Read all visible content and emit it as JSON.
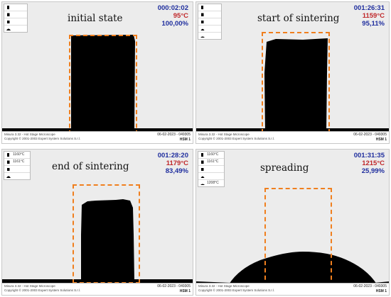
{
  "colors": {
    "box": "#f07f1e",
    "time": "#1f2e9e",
    "temperature": "#c0282a",
    "area": "#1f2e9e"
  },
  "panels": [
    {
      "title": "initial state",
      "time": "000:02:02",
      "temperature": "95°C",
      "area": "100,00%",
      "legend": [
        "",
        "",
        "",
        ""
      ],
      "footer_left": "Misura 3.32 - Hot Stage Microscope",
      "footer_left2": "Copyright © 2001-2003 Expert System Solutions S.r.l.",
      "footer_date": "06-02-2023 - 049305",
      "footer_code": "HSM 1"
    },
    {
      "title": "start of sintering",
      "time": "001:26:31",
      "temperature": "1159°C",
      "area": "95,11%",
      "legend": [
        "",
        "",
        "",
        "",
        ""
      ],
      "footer_left": "Misura 3.32 - Hot Stage Microscope",
      "footer_left2": "Copyright © 2001-2003 Expert System Solutions S.r.l.",
      "footer_date": "06-02-2023 - 049305",
      "footer_code": "HSM 1"
    },
    {
      "title": "end of sintering",
      "time": "001:28:20",
      "temperature": "1179°C",
      "area": "83,49%",
      "legend": [
        "1160°C",
        "1161°C",
        "",
        ""
      ],
      "footer_left": "Misura 3.32 - Hot Stage Microscope",
      "footer_left2": "Copyright © 2001-2003 Expert System Solutions S.r.l.",
      "footer_date": "06-02-2023 - 049305",
      "footer_code": "HSM 1"
    },
    {
      "title": "spreading",
      "time": "001:31:35",
      "temperature": "1215°C",
      "area": "25,99%",
      "legend": [
        "1160°C",
        "1161°C",
        "",
        "",
        "1208°C"
      ],
      "footer_left": "Misura 3.32 - Hot Stage Microscope",
      "footer_left2": "Copyright © 2001-2003 Expert System Solutions S.r.l.",
      "footer_date": "06-02-2023 - 049305",
      "footer_code": "HSM 1"
    }
  ]
}
